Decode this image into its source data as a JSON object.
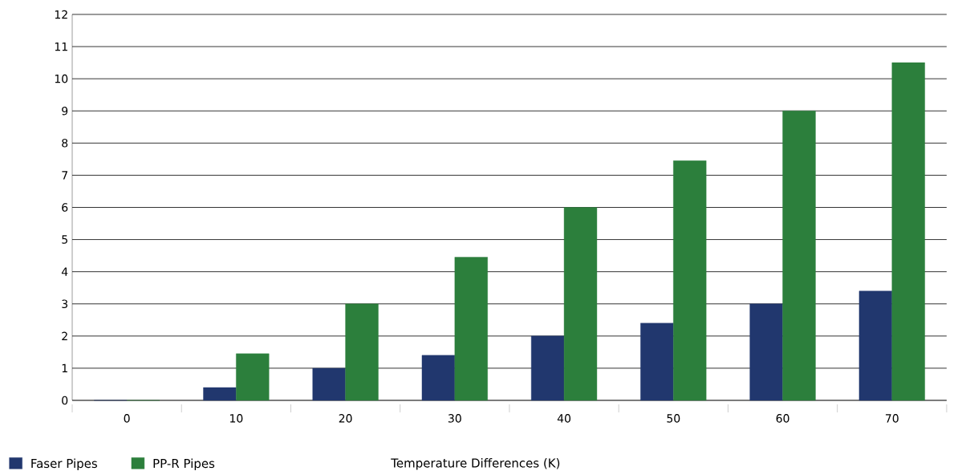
{
  "chart_data": {
    "type": "bar",
    "xlabel": "Temperature Differences (K)",
    "categories": [
      "0",
      "10",
      "20",
      "30",
      "40",
      "50",
      "60",
      "70"
    ],
    "series": [
      {
        "name": "Faser Pipes",
        "color": "#21376e",
        "values": [
          0,
          0.4,
          1,
          1.4,
          2,
          2.4,
          3,
          3.4
        ]
      },
      {
        "name": "PP-R Pipes",
        "color": "#2c7f3c",
        "values": [
          0,
          1.45,
          3,
          4.45,
          6,
          7.45,
          9,
          10.5
        ]
      }
    ],
    "ylim": [
      0,
      12
    ],
    "yticks": [
      0,
      1,
      2,
      3,
      4,
      5,
      6,
      7,
      8,
      9,
      10,
      11,
      12
    ],
    "grid": "y",
    "legend": "bottom"
  }
}
